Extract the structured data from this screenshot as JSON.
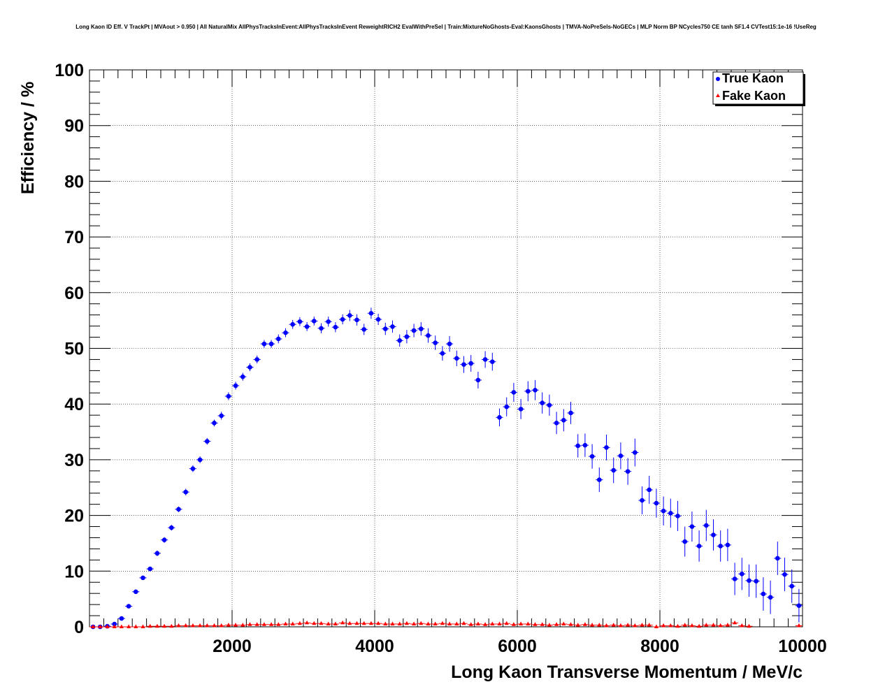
{
  "chart_data": {
    "type": "scatter",
    "title": "Long Kaon ID Eff. V TrackPt | MVAout > 0.950 | All NaturalMix AllPhysTracksInEvent:AllPhysTracksInEvent ReweightRICH2 EvalWithPreSel | Train:MixtureNoGhosts-Eval:KaonsGhosts | TMVA-NoPreSels-NoGECs | MLP Norm BP NCycles750 CE tanh SF1.4 CVTest15:1e-16 !UseReg",
    "xlabel": "Long Kaon Transverse Momentum / MeV/c",
    "ylabel": "Efficiency / %",
    "xlim": [
      0,
      10000
    ],
    "ylim": [
      0,
      100
    ],
    "x_ticks": [
      2000,
      4000,
      6000,
      8000,
      10000
    ],
    "y_ticks": [
      0,
      10,
      20,
      30,
      40,
      50,
      60,
      70,
      80,
      90,
      100
    ],
    "grid": true,
    "legend_position": "top-right",
    "series": [
      {
        "name": "True Kaon",
        "color": "#0000ff",
        "marker": "circle",
        "x": [
          50,
          150,
          250,
          350,
          450,
          550,
          650,
          750,
          850,
          950,
          1050,
          1150,
          1250,
          1350,
          1450,
          1550,
          1650,
          1750,
          1850,
          1950,
          2050,
          2150,
          2250,
          2350,
          2450,
          2550,
          2650,
          2750,
          2850,
          2950,
          3050,
          3150,
          3250,
          3350,
          3450,
          3550,
          3650,
          3750,
          3850,
          3950,
          4050,
          4150,
          4250,
          4350,
          4450,
          4550,
          4650,
          4750,
          4850,
          4950,
          5050,
          5150,
          5250,
          5350,
          5450,
          5550,
          5650,
          5750,
          5850,
          5950,
          6050,
          6150,
          6250,
          6350,
          6450,
          6550,
          6650,
          6750,
          6850,
          6950,
          7050,
          7150,
          7250,
          7350,
          7450,
          7550,
          7650,
          7750,
          7850,
          7950,
          8050,
          8150,
          8250,
          8350,
          8450,
          8550,
          8650,
          8750,
          8850,
          8950,
          9050,
          9150,
          9250,
          9350,
          9450,
          9550,
          9650,
          9750,
          9850,
          9950
        ],
        "y": [
          0,
          0,
          0.1,
          0.5,
          1.5,
          3.7,
          6.3,
          8.8,
          10.4,
          13.2,
          15.6,
          17.8,
          21.1,
          24.2,
          28.4,
          30.0,
          33.3,
          36.6,
          37.9,
          41.4,
          43.3,
          44.9,
          46.6,
          48.0,
          50.8,
          50.8,
          51.7,
          52.8,
          54.3,
          54.8,
          53.9,
          54.9,
          53.6,
          54.8,
          53.8,
          55.2,
          55.9,
          55.1,
          53.4,
          56.3,
          55.2,
          53.5,
          53.9,
          51.4,
          52.1,
          53.2,
          53.5,
          52.3,
          51.0,
          49.1,
          50.8,
          48.2,
          47.1,
          47.3,
          44.3,
          48.0,
          47.6,
          37.6,
          39.5,
          42.1,
          39.1,
          42.3,
          42.5,
          40.2,
          39.8,
          36.6,
          37.1,
          38.4,
          32.5,
          32.6,
          30.6,
          26.4,
          32.2,
          28.1,
          30.7,
          27.9,
          31.3,
          22.7,
          24.6,
          22.2,
          20.8,
          20.4,
          19.9,
          15.3,
          18.0,
          14.5,
          18.2,
          16.5,
          14.5,
          14.7,
          8.6,
          9.5,
          8.3,
          8.2,
          5.9,
          5.3,
          12.3,
          9.4,
          7.3,
          3.8
        ],
        "yerr": [
          0,
          0,
          0.1,
          0.2,
          0.3,
          0.3,
          0.4,
          0.4,
          0.4,
          0.5,
          0.5,
          0.5,
          0.5,
          0.6,
          0.6,
          0.6,
          0.6,
          0.6,
          0.7,
          0.7,
          0.7,
          0.7,
          0.7,
          0.7,
          0.7,
          0.7,
          0.8,
          0.8,
          0.8,
          0.8,
          0.8,
          0.8,
          0.9,
          0.9,
          0.9,
          0.9,
          1.0,
          1.0,
          1.0,
          1.0,
          1.0,
          1.1,
          1.1,
          1.1,
          1.2,
          1.2,
          1.2,
          1.3,
          1.3,
          1.3,
          1.4,
          1.4,
          1.5,
          1.5,
          1.5,
          1.5,
          1.6,
          1.6,
          1.7,
          1.7,
          1.8,
          1.8,
          1.8,
          1.9,
          1.9,
          2.0,
          2.0,
          2.0,
          2.1,
          2.1,
          2.2,
          2.2,
          2.3,
          2.3,
          2.4,
          2.4,
          2.5,
          2.5,
          2.5,
          2.6,
          2.6,
          2.6,
          2.7,
          2.7,
          2.7,
          2.8,
          2.8,
          2.8,
          2.8,
          2.9,
          2.9,
          2.9,
          2.9,
          3.0,
          3.0,
          3.0,
          3.0,
          3.0,
          3.0,
          3.0
        ]
      },
      {
        "name": "Fake Kaon",
        "color": "#ff0000",
        "marker": "triangle",
        "x": [
          50,
          150,
          250,
          350,
          450,
          550,
          650,
          750,
          850,
          950,
          1050,
          1150,
          1250,
          1350,
          1450,
          1550,
          1650,
          1750,
          1850,
          1950,
          2050,
          2150,
          2250,
          2350,
          2450,
          2550,
          2650,
          2750,
          2850,
          2950,
          3050,
          3150,
          3250,
          3350,
          3450,
          3550,
          3650,
          3750,
          3850,
          3950,
          4050,
          4150,
          4250,
          4350,
          4450,
          4550,
          4650,
          4750,
          4850,
          4950,
          5050,
          5150,
          5250,
          5350,
          5450,
          5550,
          5650,
          5750,
          5850,
          5950,
          6050,
          6150,
          6250,
          6350,
          6450,
          6550,
          6650,
          6750,
          6850,
          6950,
          7050,
          7150,
          7250,
          7350,
          7450,
          7550,
          7650,
          7750,
          7850,
          7950,
          8050,
          8150,
          8250,
          8350,
          8450,
          8550,
          8650,
          8750,
          8850,
          8950,
          9050,
          9150,
          9250,
          9950
        ],
        "y": [
          0,
          0,
          0,
          0,
          0,
          0,
          0,
          0,
          0.1,
          0.1,
          0.1,
          0.1,
          0.2,
          0.2,
          0.2,
          0.2,
          0.2,
          0.2,
          0.2,
          0.3,
          0.3,
          0.3,
          0.4,
          0.4,
          0.4,
          0.4,
          0.4,
          0.5,
          0.5,
          0.6,
          0.7,
          0.6,
          0.6,
          0.5,
          0.5,
          0.7,
          0.6,
          0.6,
          0.6,
          0.6,
          0.6,
          0.5,
          0.5,
          0.5,
          0.6,
          0.5,
          0.6,
          0.5,
          0.5,
          0.6,
          0.5,
          0.5,
          0.6,
          0.4,
          0.5,
          0.4,
          0.5,
          0.5,
          0.6,
          0.4,
          0.5,
          0.5,
          0.4,
          0.4,
          0.3,
          0.4,
          0.5,
          0.4,
          0.3,
          0.4,
          0.3,
          0.3,
          0.2,
          0.3,
          0.2,
          0.3,
          0.2,
          0.3,
          0.3,
          0,
          0.2,
          0.2,
          0.1,
          0.3,
          0.2,
          0.1,
          0.3,
          0.3,
          0.2,
          0.3,
          0.7,
          0.2,
          0.1,
          0.2
        ],
        "yerr": [
          0,
          0,
          0,
          0,
          0,
          0,
          0,
          0,
          0.05,
          0.05,
          0.05,
          0.05,
          0.05,
          0.05,
          0.05,
          0.05,
          0.05,
          0.05,
          0.05,
          0.05,
          0.05,
          0.05,
          0.05,
          0.05,
          0.05,
          0.05,
          0.05,
          0.05,
          0.05,
          0.05,
          0.05,
          0.05,
          0.05,
          0.05,
          0.05,
          0.05,
          0.05,
          0.05,
          0.05,
          0.05,
          0.05,
          0.05,
          0.05,
          0.05,
          0.05,
          0.05,
          0.05,
          0.05,
          0.05,
          0.05,
          0.05,
          0.05,
          0.05,
          0.05,
          0.05,
          0.05,
          0.05,
          0.05,
          0.05,
          0.05,
          0.05,
          0.05,
          0.05,
          0.05,
          0.05,
          0.05,
          0.05,
          0.05,
          0.05,
          0.05,
          0.05,
          0.05,
          0.05,
          0.05,
          0.05,
          0.05,
          0.05,
          0.05,
          0.05,
          0.05,
          0.05,
          0.05,
          0.05,
          0.05,
          0.05,
          0.05,
          0.05,
          0.05,
          0.05,
          0.05,
          0.1,
          0.05,
          0.05,
          0.05
        ]
      }
    ]
  }
}
